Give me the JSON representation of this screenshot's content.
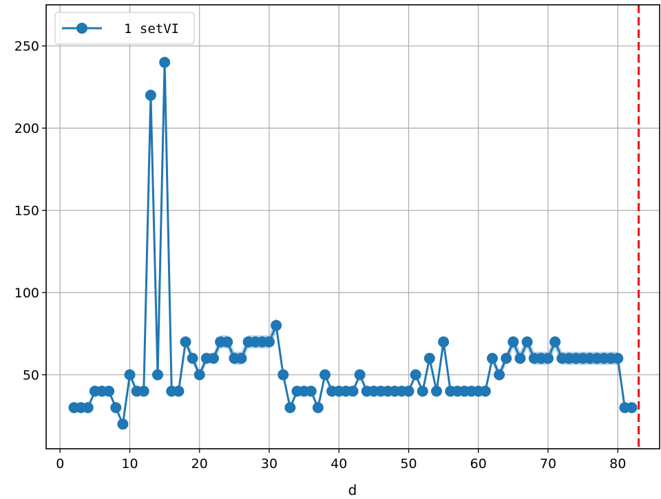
{
  "chart_data": {
    "type": "line",
    "title": "",
    "xlabel": "d",
    "ylabel": "",
    "xlim": [
      -2,
      86
    ],
    "ylim": [
      5,
      275
    ],
    "xticks": [
      0,
      10,
      20,
      30,
      40,
      50,
      60,
      70,
      80
    ],
    "yticks": [
      50,
      100,
      150,
      200,
      250
    ],
    "grid": true,
    "legend_position": "top-left",
    "vline": {
      "x": 83,
      "color": "#e8191c",
      "style": "dashed"
    },
    "series": [
      {
        "name": "1 setVI",
        "color": "#1f77b4",
        "band_color": "#aecde6",
        "marker": "circle",
        "x": [
          2,
          3,
          4,
          5,
          6,
          7,
          8,
          9,
          10,
          11,
          12,
          13,
          14,
          15,
          16,
          17,
          18,
          19,
          20,
          21,
          22,
          23,
          24,
          25,
          26,
          27,
          28,
          29,
          30,
          31,
          32,
          33,
          34,
          35,
          36,
          37,
          38,
          39,
          40,
          41,
          42,
          43,
          44,
          45,
          46,
          47,
          48,
          49,
          50,
          51,
          52,
          53,
          54,
          55,
          56,
          57,
          58,
          59,
          60,
          61,
          62,
          63,
          64,
          65,
          66,
          67,
          68,
          69,
          70,
          71,
          72,
          73,
          74,
          75,
          76,
          77,
          78,
          79,
          80,
          81,
          82
        ],
        "y": [
          30,
          30,
          30,
          40,
          40,
          40,
          30,
          20,
          50,
          40,
          40,
          220,
          50,
          240,
          40,
          40,
          70,
          60,
          50,
          60,
          60,
          70,
          70,
          60,
          60,
          70,
          70,
          70,
          70,
          80,
          50,
          30,
          40,
          40,
          40,
          30,
          50,
          40,
          40,
          40,
          40,
          50,
          40,
          40,
          40,
          40,
          40,
          40,
          40,
          50,
          40,
          60,
          40,
          70,
          40,
          40,
          40,
          40,
          40,
          40,
          60,
          50,
          60,
          70,
          60,
          70,
          60,
          60,
          60,
          70,
          60,
          60,
          60,
          60,
          60,
          60,
          60,
          60,
          60,
          30,
          30
        ],
        "band_halfwidth": [
          1,
          1,
          1,
          1,
          1,
          1,
          1,
          1,
          2,
          1,
          1,
          8,
          2,
          8,
          1,
          1,
          3,
          3,
          2,
          3,
          3,
          4,
          4,
          4,
          4,
          4,
          4,
          4,
          4,
          5,
          3,
          1,
          1,
          1,
          1,
          1,
          2,
          1,
          1,
          1,
          1,
          2,
          1,
          1,
          1,
          1,
          1,
          1,
          1,
          2,
          1,
          3,
          1,
          3,
          1,
          1,
          1,
          1,
          1,
          1,
          3,
          3,
          3,
          4,
          4,
          4,
          4,
          4,
          4,
          4,
          4,
          4,
          4,
          4,
          4,
          4,
          4,
          4,
          4,
          1,
          1
        ]
      }
    ]
  }
}
